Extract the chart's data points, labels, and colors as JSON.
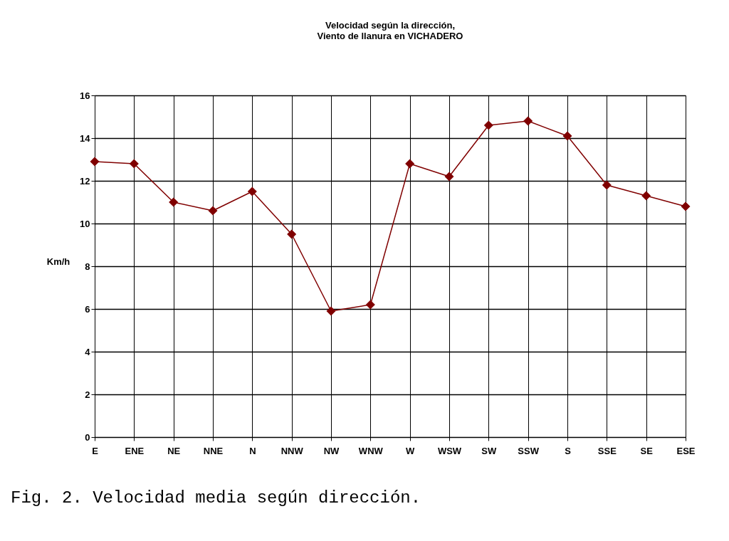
{
  "chart_data": {
    "type": "line",
    "title": "Velocidad según la dirección,\nViento de llanura en VICHADERO",
    "ylabel": "Km/h",
    "categories": [
      "E",
      "ENE",
      "NE",
      "NNE",
      "N",
      "NNW",
      "NW",
      "WNW",
      "W",
      "WSW",
      "SW",
      "SSW",
      "S",
      "SSE",
      "SE",
      "ESE"
    ],
    "series": [
      {
        "color": "#800000",
        "values": [
          12.9,
          12.8,
          11.0,
          10.6,
          11.5,
          9.5,
          5.9,
          6.2,
          12.8,
          12.2,
          14.6,
          14.8,
          14.1,
          11.8,
          11.3,
          10.8
        ]
      }
    ],
    "ylim": [
      0,
      16
    ],
    "yticks": [
      0,
      2,
      4,
      6,
      8,
      10,
      12,
      14,
      16
    ],
    "grid": true,
    "marker": "diamond",
    "line_style": "solid",
    "annotations": [
      "Fig. 2. Velocidad media según dirección."
    ]
  }
}
